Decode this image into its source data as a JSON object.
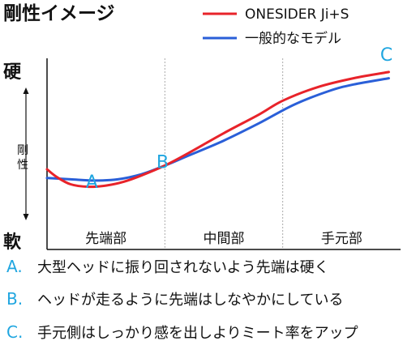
{
  "chart_data": {
    "type": "line",
    "title": "剛性イメージ",
    "y_axis": {
      "label": "剛性",
      "top": "硬",
      "bottom": "軟",
      "range": [
        0,
        100
      ]
    },
    "x_axis": {
      "range": [
        0,
        3
      ],
      "sections": [
        "先端部",
        "中間部",
        "手元部"
      ]
    },
    "grid": false,
    "legend_position": "top-right",
    "series": [
      {
        "name": "ONESIDER Ji+S",
        "color": "#e8232a",
        "x": [
          0.0,
          0.08,
          0.2,
          0.35,
          0.5,
          0.65,
          0.8,
          1.0,
          1.2,
          1.5,
          1.8,
          2.0,
          2.3,
          2.6,
          2.9
        ],
        "y": [
          24,
          18,
          12,
          10,
          11,
          14,
          19,
          27,
          37,
          53,
          68,
          79,
          90,
          97,
          102
        ]
      },
      {
        "name": "一般的なモデル",
        "color": "#2a5fd8",
        "x": [
          0.0,
          0.2,
          0.4,
          0.6,
          0.8,
          1.0,
          1.2,
          1.5,
          1.8,
          2.1,
          2.4,
          2.6,
          2.9
        ],
        "y": [
          17,
          16,
          15,
          16,
          20,
          27,
          35,
          47,
          61,
          76,
          87,
          92,
          97
        ]
      }
    ],
    "annotations": [
      {
        "label": "A",
        "x": 0.38,
        "y": 9
      },
      {
        "label": "B",
        "x": 0.98,
        "y": 25
      },
      {
        "label": "C",
        "x": 2.88,
        "y": 111
      }
    ],
    "colors": {
      "annotation": "#20a6e0",
      "axis": "#111111",
      "divider": "#aaaaaa"
    }
  },
  "notes": [
    {
      "letter": "A.",
      "text": "大型ヘッドに振り回されないよう先端は硬く"
    },
    {
      "letter": "B.",
      "text": "ヘッドが走るように先端はしなやかにしている"
    },
    {
      "letter": "C.",
      "text": "手元側はしっかり感を出しよりミート率をアップ"
    }
  ]
}
